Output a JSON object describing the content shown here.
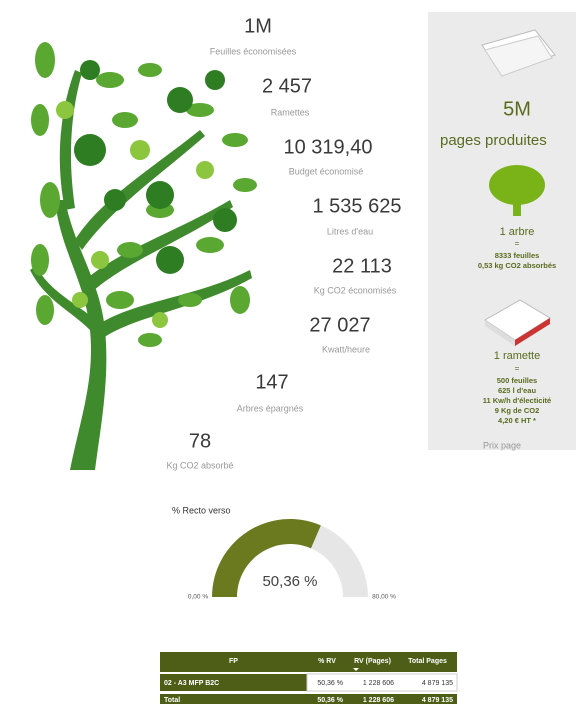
{
  "stats": [
    {
      "value": "1M",
      "label": "Feuilles économisées"
    },
    {
      "value": "2 457",
      "label": "Ramettes"
    },
    {
      "value": "10 319,40",
      "label": "Budget économisé"
    },
    {
      "value": "1 535 625",
      "label": "Litres d'eau"
    },
    {
      "value": "22 113",
      "label": "Kg CO2 économisés"
    },
    {
      "value": "27 027",
      "label": "Kwatt/heure"
    },
    {
      "value": "147",
      "label": "Arbres épargnés"
    },
    {
      "value": "78",
      "label": "Kg CO2 absorbé"
    }
  ],
  "panel": {
    "total": "5M",
    "total_label": "pages produites",
    "tree_title": "1 arbre",
    "tree_eq": "=",
    "tree_lines": [
      "8333 feuilles",
      "0,53 kg CO2 absorbés"
    ],
    "ream_title": "1 ramette",
    "ream_eq": "=",
    "ream_lines": [
      "500 feuilles",
      "625 l d'eau",
      "11 Kw/h d'électicité",
      "9 Kg de CO2",
      "4,20 € HT *"
    ],
    "footer": "Prix page"
  },
  "gauge": {
    "title": "% Recto verso",
    "value": 50.36,
    "value_label": "50,36 %",
    "min": 0,
    "min_label": "0,00 %",
    "max": 80,
    "max_label": "80,00 %"
  },
  "table": {
    "header": [
      "FP",
      "% RV",
      "RV (Pages)",
      "Total Pages"
    ],
    "rows": [
      [
        "02 - A3 MFP B2C",
        "50,36 %",
        "1 228 606",
        "4 879 135"
      ]
    ],
    "total": [
      "Total",
      "50,36 %",
      "1 228 606",
      "4 879 135"
    ]
  }
}
